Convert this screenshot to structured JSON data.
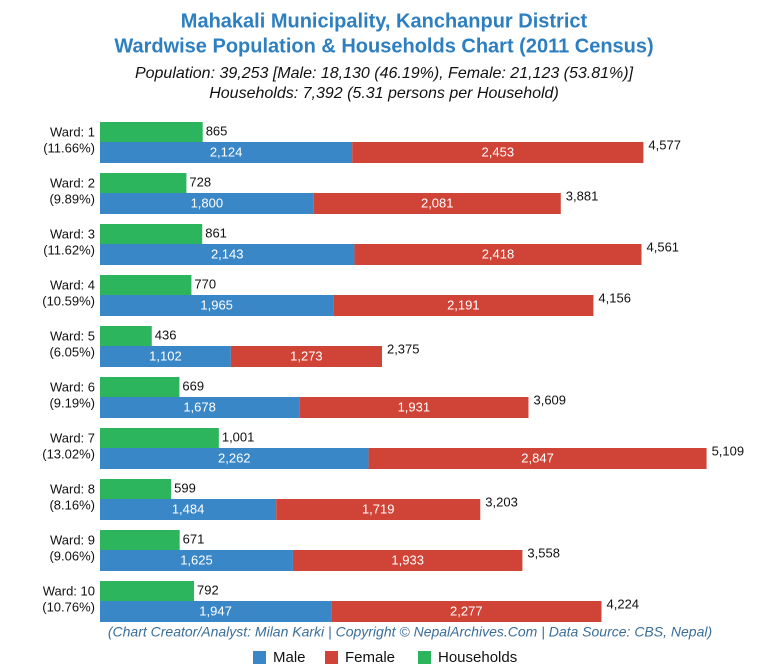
{
  "chart_data": {
    "type": "bar",
    "orientation": "horizontal",
    "title": [
      "Mahakali Municipality, Kanchanpur District",
      "Wardwise Population & Households Chart (2011 Census)"
    ],
    "subtitle": [
      "Population: 39,253 [Male: 18,130 (46.19%), Female: 21,123 (53.81%)]",
      "Households: 7,392 (5.31 persons per Household)"
    ],
    "note": "(Chart Creator/Analyst: Milan Karki | Copyright © NepalArchives.Com | Data Source: CBS, Nepal)",
    "categories": [
      "Ward: 1",
      "Ward: 2",
      "Ward: 3",
      "Ward: 4",
      "Ward: 5",
      "Ward: 6",
      "Ward: 7",
      "Ward: 8",
      "Ward: 9",
      "Ward: 10"
    ],
    "category_shares": [
      "(11.66%)",
      "(9.89%)",
      "(11.62%)",
      "(10.59%)",
      "(6.05%)",
      "(9.19%)",
      "(13.02%)",
      "(8.16%)",
      "(9.06%)",
      "(10.76%)"
    ],
    "xlim": [
      0,
      5500
    ],
    "series": [
      {
        "name": "Male",
        "color": "#3a87c8",
        "values": [
          2124,
          1800,
          2143,
          1965,
          1102,
          1678,
          2262,
          1484,
          1625,
          1947
        ],
        "value_labels": [
          "2,124",
          "1,800",
          "2,143",
          "1,965",
          "1,102",
          "1,678",
          "2,262",
          "1,484",
          "1,625",
          "1,947"
        ]
      },
      {
        "name": "Female",
        "color": "#d04437",
        "values": [
          2453,
          2081,
          2418,
          2191,
          1273,
          1931,
          2847,
          1719,
          1933,
          2277
        ],
        "value_labels": [
          "2,453",
          "2,081",
          "2,418",
          "2,191",
          "1,273",
          "1,931",
          "2,847",
          "1,719",
          "1,933",
          "2,277"
        ]
      },
      {
        "name": "Households",
        "color": "#2db55d",
        "values": [
          865,
          728,
          861,
          770,
          436,
          669,
          1001,
          599,
          671,
          792
        ],
        "value_labels": [
          "865",
          "728",
          "861",
          "770",
          "436",
          "669",
          "1,001",
          "599",
          "671",
          "792"
        ]
      }
    ],
    "totals": [
      4577,
      3881,
      4561,
      4156,
      2375,
      3609,
      5109,
      3203,
      3558,
      4224
    ],
    "total_labels": [
      "4,577",
      "3,881",
      "4,561",
      "4,156",
      "2,375",
      "3,609",
      "5,109",
      "3,203",
      "3,558",
      "4,224"
    ],
    "legend": "bottom"
  }
}
